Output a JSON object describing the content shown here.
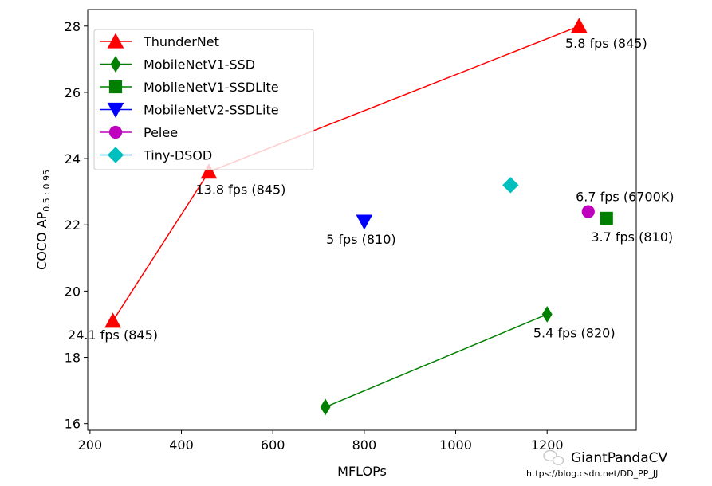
{
  "chart_data": {
    "type": "scatter",
    "xlabel": "MFLOPs",
    "ylabel": "COCO AP",
    "ylabel_sub": "0.5 : 0.95",
    "xlim": [
      195,
      1395
    ],
    "ylim": [
      15.8,
      28.5
    ],
    "xticks": [
      200,
      400,
      600,
      800,
      1000,
      1200
    ],
    "yticks": [
      16,
      18,
      20,
      22,
      24,
      26,
      28
    ],
    "legend_position": "top-left",
    "series": [
      {
        "name": "ThunderNet",
        "marker": "triangle-up",
        "color": "#ff0000",
        "line": true,
        "points": [
          {
            "x": 250,
            "y": 19.1,
            "label": "24.1 fps (845)"
          },
          {
            "x": 460,
            "y": 23.6,
            "label": "13.8 fps (845)"
          },
          {
            "x": 1270,
            "y": 28.0,
            "label": "5.8 fps (845)"
          }
        ]
      },
      {
        "name": "MobileNetV1-SSD",
        "marker": "thin-diamond",
        "color": "#008000",
        "line": true,
        "points": [
          {
            "x": 715,
            "y": 16.5,
            "label": ""
          },
          {
            "x": 1200,
            "y": 19.3,
            "label": "5.4 fps (820)"
          }
        ]
      },
      {
        "name": "MobileNetV1-SSDLite",
        "marker": "square",
        "color": "#008000",
        "line": false,
        "points": [
          {
            "x": 1330,
            "y": 22.2,
            "label": "3.7 fps (810)"
          }
        ]
      },
      {
        "name": "MobileNetV2-SSDLite",
        "marker": "triangle-down",
        "color": "#0000ff",
        "line": false,
        "points": [
          {
            "x": 800,
            "y": 22.1,
            "label": "5 fps (810)"
          }
        ]
      },
      {
        "name": "Pelee",
        "marker": "circle",
        "color": "#bf00bf",
        "line": false,
        "points": [
          {
            "x": 1290,
            "y": 22.4,
            "label": "6.7 fps (6700K)"
          }
        ]
      },
      {
        "name": "Tiny-DSOD",
        "marker": "diamond",
        "color": "#00bfbf",
        "line": false,
        "points": [
          {
            "x": 1120,
            "y": 23.2,
            "label": ""
          }
        ]
      }
    ]
  },
  "watermark": {
    "text": "GiantPandaCV",
    "url": "https://blog.csdn.net/DD_PP_JJ"
  }
}
